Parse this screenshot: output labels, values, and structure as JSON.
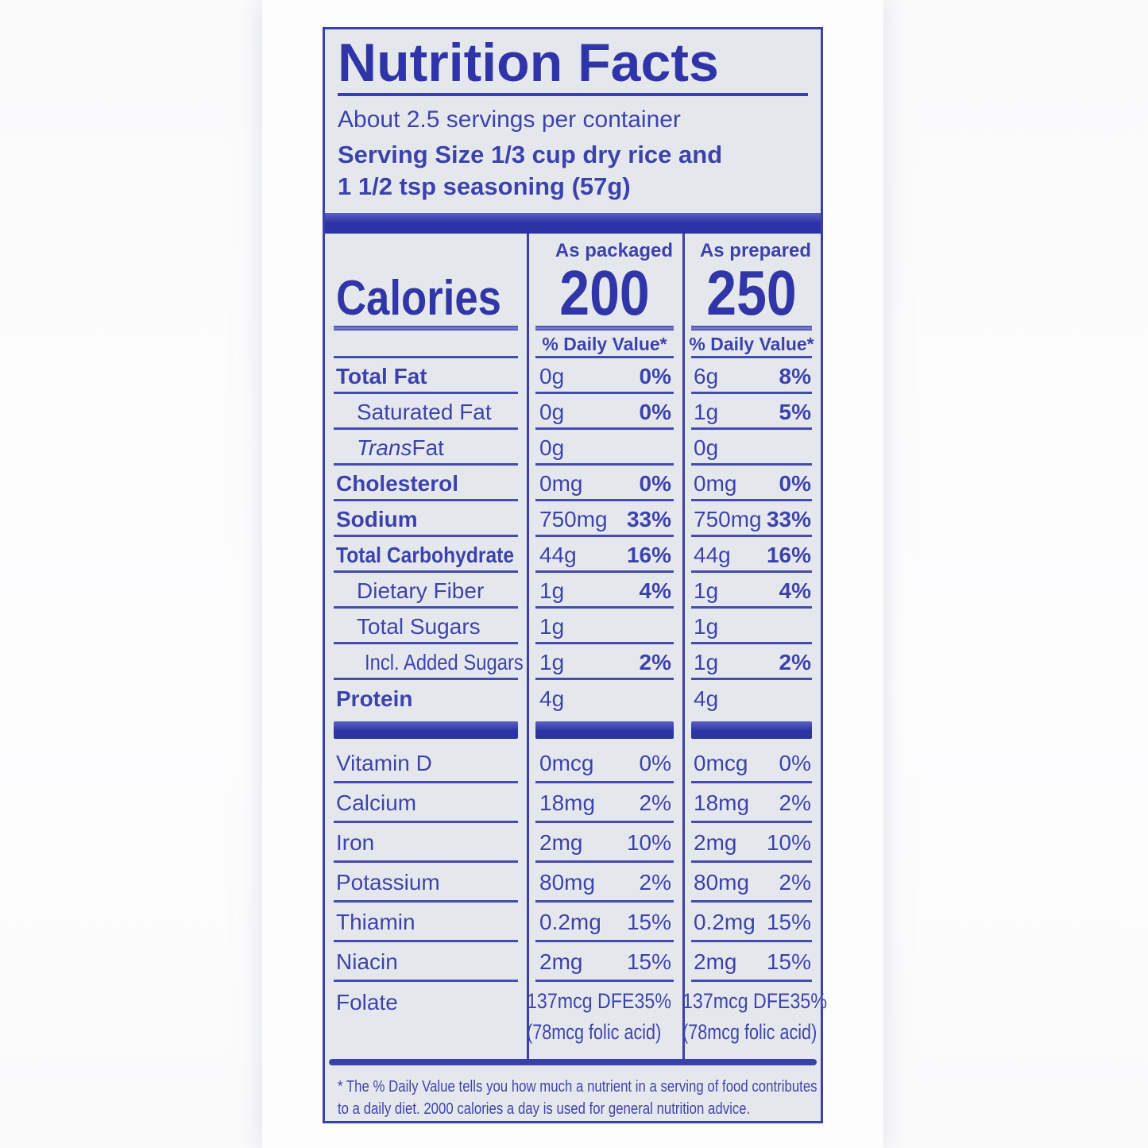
{
  "colors": {
    "ink": "#3c42ab",
    "ink_bold": "#2f35a8",
    "label_background": "#e4e7ec",
    "bar": "#2c33a4",
    "page_background": "#fbfbfc"
  },
  "label": {
    "title": "Nutrition Facts",
    "servings_per_container": "About 2.5 servings per container",
    "serving_size_line1": "Serving Size 1/3 cup dry rice and",
    "serving_size_line2": "1 1/2 tsp seasoning (57g)",
    "calories_heading": "Calories",
    "columns": [
      {
        "header": "As packaged",
        "calories": "200",
        "dv_header": "% Daily Value*"
      },
      {
        "header": "As prepared",
        "calories": "250",
        "dv_header": "% Daily Value*"
      }
    ],
    "nutrients": [
      {
        "name": "Total Fat",
        "packaged_amount": "0g",
        "packaged_dv": "0%",
        "prepared_amount": "6g",
        "prepared_dv": "8%"
      },
      {
        "name": "Saturated Fat",
        "packaged_amount": "0g",
        "packaged_dv": "0%",
        "prepared_amount": "1g",
        "prepared_dv": "5%"
      },
      {
        "name_italic": "Trans",
        "name_rest": " Fat",
        "packaged_amount": "0g",
        "packaged_dv": "",
        "prepared_amount": "0g",
        "prepared_dv": ""
      },
      {
        "name": "Cholesterol",
        "packaged_amount": "0mg",
        "packaged_dv": "0%",
        "prepared_amount": "0mg",
        "prepared_dv": "0%"
      },
      {
        "name": "Sodium",
        "packaged_amount": "750mg",
        "packaged_dv": "33%",
        "prepared_amount": "750mg",
        "prepared_dv": "33%"
      },
      {
        "name": "Total Carbohydrate",
        "packaged_amount": "44g",
        "packaged_dv": "16%",
        "prepared_amount": "44g",
        "prepared_dv": "16%"
      },
      {
        "name": "Dietary Fiber",
        "packaged_amount": "1g",
        "packaged_dv": "4%",
        "prepared_amount": "1g",
        "prepared_dv": "4%"
      },
      {
        "name": "Total Sugars",
        "packaged_amount": "1g",
        "packaged_dv": "",
        "prepared_amount": "1g",
        "prepared_dv": ""
      },
      {
        "name": "Incl. Added Sugars",
        "packaged_amount": "1g",
        "packaged_dv": "2%",
        "prepared_amount": "1g",
        "prepared_dv": "2%"
      },
      {
        "name": "Protein",
        "packaged_amount": "4g",
        "packaged_dv": "",
        "prepared_amount": "4g",
        "prepared_dv": ""
      }
    ],
    "vitamins": [
      {
        "name": "Vitamin D",
        "packaged_amount": "0mcg",
        "packaged_dv": "0%",
        "prepared_amount": "0mcg",
        "prepared_dv": "0%"
      },
      {
        "name": "Calcium",
        "packaged_amount": "18mg",
        "packaged_dv": "2%",
        "prepared_amount": "18mg",
        "prepared_dv": "2%"
      },
      {
        "name": "Iron",
        "packaged_amount": "2mg",
        "packaged_dv": "10%",
        "prepared_amount": "2mg",
        "prepared_dv": "10%"
      },
      {
        "name": "Potassium",
        "packaged_amount": "80mg",
        "packaged_dv": "2%",
        "prepared_amount": "80mg",
        "prepared_dv": "2%"
      },
      {
        "name": "Thiamin",
        "packaged_amount": "0.2mg",
        "packaged_dv": "15%",
        "prepared_amount": "0.2mg",
        "prepared_dv": "15%"
      },
      {
        "name": "Niacin",
        "packaged_amount": "2mg",
        "packaged_dv": "15%",
        "prepared_amount": "2mg",
        "prepared_dv": "15%"
      }
    ],
    "folate": {
      "name": "Folate",
      "packaged_amount": "137mcg DFE",
      "packaged_dv": "35%",
      "packaged_note": "(78mcg folic acid)",
      "prepared_amount": "137mcg DFE",
      "prepared_dv": "35%",
      "prepared_note": "(78mcg folic acid)"
    },
    "footnote_line1": "* The % Daily Value tells you how much a nutrient in a serving of food contributes",
    "footnote_line2": "to a daily diet. 2000 calories a day is used for general nutrition advice."
  }
}
